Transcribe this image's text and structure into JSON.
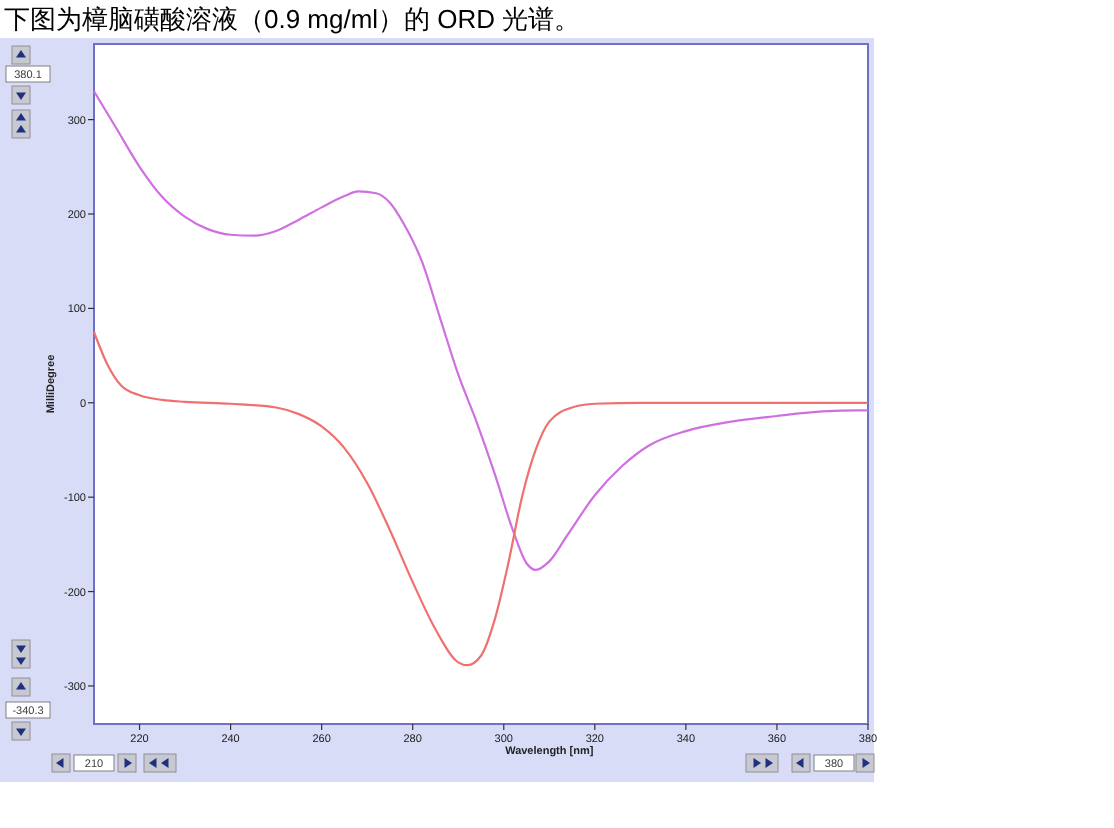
{
  "chart_data": {
    "type": "line",
    "title": "下图为樟脑磺酸溶液（0.9 mg/ml）的 ORD 光谱。",
    "xlabel": "Wavelength [nm]",
    "ylabel": "MilliDegree",
    "xlim": [
      210,
      380
    ],
    "xticks": [
      220,
      240,
      260,
      280,
      300,
      320,
      340,
      360,
      380
    ],
    "ylim": [
      -340.3,
      380.1
    ],
    "yticks": [
      -300,
      -200,
      -100,
      0,
      100,
      200,
      300
    ],
    "grid": false,
    "marker": "none",
    "line_style": "solid",
    "annotations": [
      "380.1",
      "-340.3",
      "210",
      "380"
    ],
    "series": [
      {
        "color": "#d070e0",
        "x": [
          210,
          215,
          220,
          225,
          230,
          235,
          240,
          245,
          250,
          255,
          260,
          265,
          268,
          272,
          275,
          278,
          282,
          286,
          290,
          294,
          298,
          302,
          305,
          307,
          310,
          314,
          320,
          326,
          332,
          340,
          350,
          360,
          370,
          378,
          380
        ],
        "values": [
          330,
          290,
          250,
          218,
          197,
          184,
          178,
          177,
          182,
          194,
          207,
          219,
          224,
          222,
          212,
          190,
          150,
          90,
          30,
          -20,
          -75,
          -135,
          -170,
          -177,
          -168,
          -140,
          -98,
          -67,
          -45,
          -30,
          -20,
          -14,
          -9,
          -8,
          -8
        ]
      },
      {
        "color": "#f07070",
        "x": [
          210,
          213,
          216,
          220,
          225,
          230,
          240,
          250,
          255,
          260,
          265,
          270,
          275,
          280,
          285,
          290,
          292,
          295,
          298,
          301,
          304,
          307,
          310,
          315,
          320,
          330,
          380
        ],
        "values": [
          75,
          40,
          18,
          8,
          3,
          1,
          -1,
          -5,
          -12,
          -25,
          -48,
          -85,
          -135,
          -190,
          -240,
          -275,
          -278,
          -268,
          -230,
          -170,
          -100,
          -50,
          -20,
          -5,
          -1,
          0,
          0
        ]
      }
    ]
  }
}
